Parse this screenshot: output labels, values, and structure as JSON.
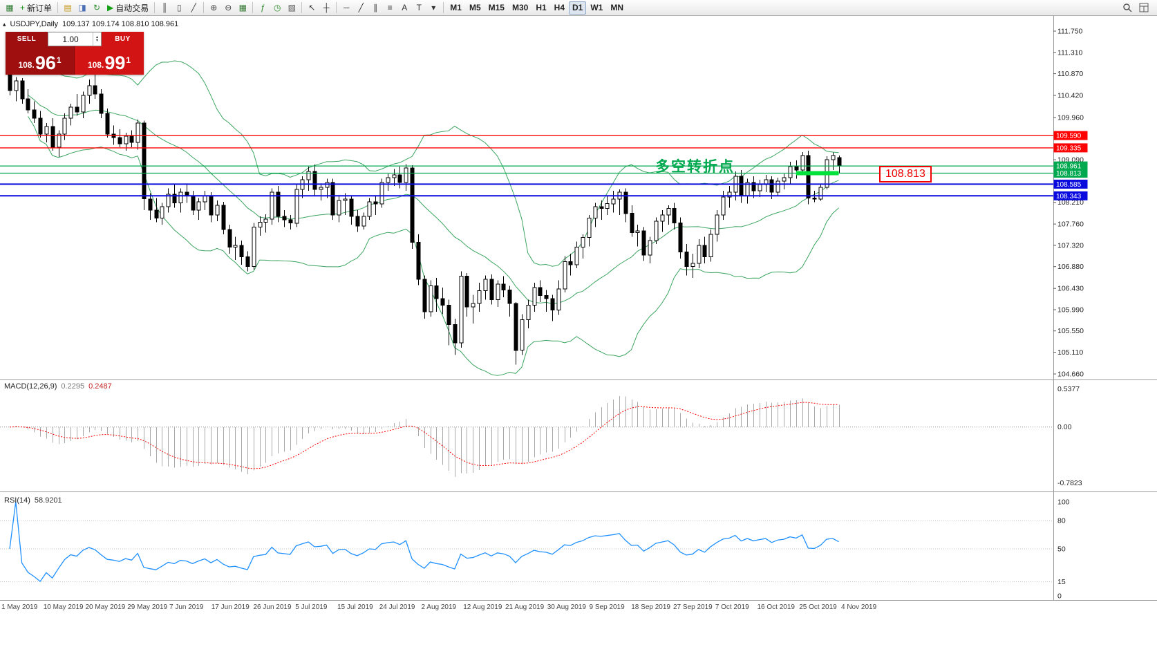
{
  "toolbar": {
    "groups": [
      {
        "items": [
          {
            "name": "app-icon",
            "glyph": "▦",
            "color": "#2f7d32"
          },
          {
            "name": "new-order-button",
            "glyph": "+",
            "color": "#1a8f1a",
            "label": "新订单"
          }
        ]
      },
      {
        "items": [
          {
            "name": "chart-window-icon",
            "glyph": "▤",
            "color": "#c79618"
          },
          {
            "name": "profiles-icon",
            "glyph": "◨",
            "color": "#4a6fb5"
          },
          {
            "name": "refresh-icon",
            "glyph": "↻",
            "color": "#2f8f2f"
          },
          {
            "name": "autotrade-button",
            "glyph": "▶",
            "color": "#16a016",
            "label": "自动交易"
          }
        ]
      },
      {
        "items": [
          {
            "name": "bars-chart-icon",
            "glyph": "║",
            "color": "#444444"
          },
          {
            "name": "candlestick-chart-icon",
            "glyph": "▯",
            "color": "#444444"
          },
          {
            "name": "line-chart-icon",
            "glyph": "╱",
            "color": "#444444"
          }
        ]
      },
      {
        "items": [
          {
            "name": "zoom-in-icon",
            "glyph": "⊕",
            "color": "#444444"
          },
          {
            "name": "zoom-out-icon",
            "glyph": "⊖",
            "color": "#444444"
          },
          {
            "name": "tile-windows-icon",
            "glyph": "▦",
            "color": "#3a7d3a"
          }
        ]
      },
      {
        "items": [
          {
            "name": "indicators-icon",
            "glyph": "ƒ",
            "color": "#2f8f2f"
          },
          {
            "name": "periods-icon",
            "glyph": "◷",
            "color": "#2f8f2f"
          },
          {
            "name": "templates-icon",
            "glyph": "▧",
            "color": "#555555"
          }
        ]
      },
      {
        "items": [
          {
            "name": "cursor-icon",
            "glyph": "↖",
            "color": "#333333"
          },
          {
            "name": "crosshair-icon",
            "glyph": "┼",
            "color": "#333333"
          }
        ]
      },
      {
        "items": [
          {
            "name": "hline-tool-icon",
            "glyph": "─",
            "color": "#333333"
          },
          {
            "name": "trendline-tool-icon",
            "glyph": "╱",
            "color": "#333333"
          },
          {
            "name": "channel-tool-icon",
            "glyph": "∥",
            "color": "#333333"
          },
          {
            "name": "fibonacci-tool-icon",
            "glyph": "≡",
            "color": "#333333"
          },
          {
            "name": "text-tool-button",
            "glyph": "A",
            "color": "#333333"
          },
          {
            "name": "label-tool-button",
            "glyph": "T",
            "color": "#333333"
          },
          {
            "name": "arrow-tools-icon",
            "glyph": "▾",
            "color": "#333333"
          }
        ]
      },
      {
        "items": [
          {
            "name": "timeframe-m1-button",
            "label": "M1",
            "tf": true
          },
          {
            "name": "timeframe-m5-button",
            "label": "M5",
            "tf": true
          },
          {
            "name": "timeframe-m15-button",
            "label": "M15",
            "tf": true
          },
          {
            "name": "timeframe-m30-button",
            "label": "M30",
            "tf": true
          },
          {
            "name": "timeframe-h1-button",
            "label": "H1",
            "tf": true
          },
          {
            "name": "timeframe-h4-button",
            "label": "H4",
            "tf": true
          },
          {
            "name": "timeframe-d1-button",
            "label": "D1",
            "tf": true,
            "active": true
          },
          {
            "name": "timeframe-w1-button",
            "label": "W1",
            "tf": true
          },
          {
            "name": "timeframe-mn-button",
            "label": "MN",
            "tf": true
          }
        ]
      }
    ]
  },
  "chart_header": {
    "menu_icon": "▴",
    "symbol": "USDJPY,Daily",
    "ohlc": "109.137 109.174 108.810 108.961"
  },
  "trade_panel": {
    "sell_label": "SELL",
    "buy_label": "BUY",
    "volume": "1.00",
    "spinner_up": "▴",
    "spinner_down": "▾",
    "sell_price": {
      "prefix": "108.",
      "big": "96",
      "sup": "1"
    },
    "buy_price": {
      "prefix": "108.",
      "big": "99",
      "sup": "1"
    }
  },
  "annotations": {
    "turning_point": {
      "text": "多空转折点",
      "color": "#00a94f"
    },
    "callout": {
      "text": "108.813",
      "color": "#f00000"
    }
  },
  "chart_data": {
    "type": "candlestick",
    "symbol": "USDJPY",
    "timeframe": "Daily",
    "ylim": [
      104.66,
      111.75
    ],
    "y_axis_ticks": [
      111.75,
      111.31,
      110.87,
      110.42,
      109.96,
      109.09,
      108.21,
      107.76,
      107.32,
      106.88,
      106.43,
      105.99,
      105.55,
      105.11,
      104.66
    ],
    "x_axis_labels": [
      "1 May 2019",
      "10 May 2019",
      "20 May 2019",
      "29 May 2019",
      "7 Jun 2019",
      "17 Jun 2019",
      "26 Jun 2019",
      "5 Jul 2019",
      "15 Jul 2019",
      "24 Jul 2019",
      "2 Aug 2019",
      "12 Aug 2019",
      "21 Aug 2019",
      "30 Aug 2019",
      "9 Sep 2019",
      "18 Sep 2019",
      "27 Sep 2019",
      "7 Oct 2019",
      "16 Oct 2019",
      "25 Oct 2019",
      "4 Nov 2019"
    ],
    "overlays": {
      "bollinger": {
        "period": 20,
        "deviation": 2,
        "color": "#3aa45f"
      }
    },
    "hlines": [
      {
        "price": 109.59,
        "color": "#ff0000",
        "width": 1.4,
        "label": "109.590"
      },
      {
        "price": 109.335,
        "color": "#ff0000",
        "width": 1.4,
        "label": "109.335"
      },
      {
        "price": 108.961,
        "color": "#00a94f",
        "width": 1.2,
        "label": "108.961"
      },
      {
        "price": 108.813,
        "color": "#00a94f",
        "width": 1.2,
        "label": "108.813"
      },
      {
        "price": 108.585,
        "color": "#0a0adf",
        "width": 2,
        "label": "108.585"
      },
      {
        "price": 108.343,
        "color": "#0a0adf",
        "width": 2,
        "label": "108.343"
      }
    ],
    "highlight_segment": {
      "price": 108.813,
      "from_index": 129,
      "to_index": 136,
      "color": "#00e13c",
      "thickness": 6
    },
    "candles": [
      [
        110.85,
        110.92,
        110.42,
        110.52
      ],
      [
        110.52,
        110.8,
        110.3,
        110.72
      ],
      [
        110.72,
        110.78,
        110.25,
        110.35
      ],
      [
        110.35,
        110.55,
        110.05,
        110.12
      ],
      [
        110.12,
        110.3,
        109.85,
        109.95
      ],
      [
        109.95,
        110.1,
        109.55,
        109.62
      ],
      [
        109.62,
        109.85,
        109.45,
        109.78
      ],
      [
        109.78,
        109.95,
        109.28,
        109.35
      ],
      [
        109.35,
        109.7,
        109.15,
        109.62
      ],
      [
        109.62,
        110.05,
        109.5,
        109.95
      ],
      [
        109.95,
        110.25,
        109.8,
        110.18
      ],
      [
        110.18,
        110.45,
        110.0,
        110.08
      ],
      [
        110.08,
        110.5,
        109.95,
        110.42
      ],
      [
        110.42,
        110.75,
        110.25,
        110.62
      ],
      [
        110.62,
        110.85,
        110.35,
        110.45
      ],
      [
        110.45,
        110.55,
        109.95,
        110.05
      ],
      [
        110.05,
        110.15,
        109.55,
        109.62
      ],
      [
        109.62,
        109.8,
        109.4,
        109.55
      ],
      [
        109.55,
        109.72,
        109.35,
        109.42
      ],
      [
        109.42,
        109.65,
        109.28,
        109.58
      ],
      [
        109.58,
        109.7,
        109.35,
        109.45
      ],
      [
        109.45,
        109.92,
        109.3,
        109.85
      ],
      [
        109.85,
        109.9,
        108.05,
        108.28
      ],
      [
        108.28,
        108.4,
        107.85,
        108.05
      ],
      [
        108.05,
        108.3,
        107.8,
        107.88
      ],
      [
        107.88,
        108.2,
        107.75,
        108.12
      ],
      [
        108.12,
        108.5,
        108.0,
        108.38
      ],
      [
        108.38,
        108.6,
        108.1,
        108.2
      ],
      [
        108.2,
        108.5,
        108.0,
        108.42
      ],
      [
        108.42,
        108.6,
        108.2,
        108.35
      ],
      [
        108.35,
        108.45,
        107.95,
        108.05
      ],
      [
        108.05,
        108.3,
        107.85,
        108.22
      ],
      [
        108.22,
        108.45,
        108.05,
        108.35
      ],
      [
        108.35,
        108.42,
        107.8,
        107.95
      ],
      [
        107.95,
        108.25,
        107.82,
        108.15
      ],
      [
        108.15,
        108.22,
        107.55,
        107.65
      ],
      [
        107.65,
        107.75,
        107.15,
        107.28
      ],
      [
        107.28,
        107.5,
        107.02,
        107.32
      ],
      [
        107.32,
        107.42,
        106.92,
        107.08
      ],
      [
        107.08,
        107.2,
        106.78,
        106.88
      ],
      [
        106.88,
        107.78,
        106.82,
        107.7
      ],
      [
        107.7,
        107.92,
        107.52,
        107.8
      ],
      [
        107.8,
        107.96,
        107.58,
        107.86
      ],
      [
        107.86,
        108.5,
        107.75,
        108.42
      ],
      [
        108.42,
        108.55,
        107.8,
        107.92
      ],
      [
        107.92,
        108.05,
        107.7,
        107.85
      ],
      [
        107.85,
        107.95,
        107.65,
        107.78
      ],
      [
        107.78,
        108.6,
        107.7,
        108.48
      ],
      [
        108.48,
        108.75,
        108.3,
        108.68
      ],
      [
        108.68,
        108.95,
        108.45,
        108.85
      ],
      [
        108.85,
        108.99,
        108.35,
        108.48
      ],
      [
        108.48,
        108.6,
        108.25,
        108.52
      ],
      [
        108.52,
        108.7,
        108.3,
        108.62
      ],
      [
        108.62,
        108.7,
        107.85,
        107.95
      ],
      [
        107.95,
        108.35,
        107.8,
        108.25
      ],
      [
        108.25,
        108.4,
        107.95,
        108.28
      ],
      [
        108.28,
        108.35,
        107.75,
        107.92
      ],
      [
        107.92,
        108.05,
        107.6,
        107.72
      ],
      [
        107.72,
        108.0,
        107.65,
        107.92
      ],
      [
        107.92,
        108.3,
        107.85,
        108.22
      ],
      [
        108.22,
        108.35,
        107.95,
        108.18
      ],
      [
        108.18,
        108.7,
        108.1,
        108.62
      ],
      [
        108.62,
        108.8,
        108.45,
        108.72
      ],
      [
        108.72,
        108.9,
        108.55,
        108.78
      ],
      [
        108.78,
        108.95,
        108.5,
        108.62
      ],
      [
        108.62,
        109.0,
        108.45,
        108.92
      ],
      [
        108.92,
        108.98,
        107.25,
        107.38
      ],
      [
        107.38,
        107.55,
        106.5,
        106.62
      ],
      [
        106.62,
        106.7,
        105.8,
        105.95
      ],
      [
        105.95,
        106.6,
        105.85,
        106.48
      ],
      [
        106.48,
        106.65,
        105.95,
        106.22
      ],
      [
        106.22,
        106.45,
        105.9,
        106.08
      ],
      [
        106.08,
        106.2,
        105.25,
        105.68
      ],
      [
        105.68,
        105.8,
        105.05,
        105.3
      ],
      [
        105.3,
        106.78,
        105.2,
        106.68
      ],
      [
        106.68,
        106.75,
        105.85,
        106.05
      ],
      [
        106.05,
        106.3,
        105.7,
        106.12
      ],
      [
        106.12,
        106.55,
        105.95,
        106.38
      ],
      [
        106.38,
        106.7,
        106.2,
        106.62
      ],
      [
        106.62,
        106.72,
        106.1,
        106.2
      ],
      [
        106.2,
        106.6,
        106.05,
        106.52
      ],
      [
        106.52,
        106.68,
        106.25,
        106.4
      ],
      [
        106.4,
        106.48,
        105.85,
        106.12
      ],
      [
        106.12,
        106.15,
        104.85,
        105.15
      ],
      [
        105.15,
        105.9,
        105.05,
        105.78
      ],
      [
        105.78,
        106.2,
        105.6,
        106.08
      ],
      [
        106.08,
        106.55,
        105.95,
        106.45
      ],
      [
        106.45,
        106.6,
        106.15,
        106.28
      ],
      [
        106.28,
        106.4,
        105.95,
        106.22
      ],
      [
        106.22,
        106.3,
        105.75,
        105.98
      ],
      [
        105.98,
        106.6,
        105.88,
        106.42
      ],
      [
        106.42,
        107.1,
        106.35,
        106.98
      ],
      [
        106.98,
        107.15,
        106.7,
        106.92
      ],
      [
        106.92,
        107.4,
        106.85,
        107.28
      ],
      [
        107.28,
        107.55,
        107.05,
        107.48
      ],
      [
        107.48,
        107.95,
        107.3,
        107.88
      ],
      [
        107.88,
        108.2,
        107.7,
        108.12
      ],
      [
        108.12,
        108.25,
        107.85,
        108.08
      ],
      [
        108.08,
        108.35,
        107.95,
        108.18
      ],
      [
        108.18,
        108.45,
        108.0,
        108.28
      ],
      [
        108.28,
        108.48,
        107.95,
        108.42
      ],
      [
        108.42,
        108.5,
        107.8,
        107.98
      ],
      [
        107.98,
        108.15,
        107.5,
        107.58
      ],
      [
        107.58,
        107.75,
        107.3,
        107.62
      ],
      [
        107.62,
        107.7,
        107.0,
        107.12
      ],
      [
        107.12,
        107.5,
        106.95,
        107.42
      ],
      [
        107.42,
        107.9,
        107.35,
        107.82
      ],
      [
        107.82,
        108.05,
        107.6,
        107.95
      ],
      [
        107.95,
        108.15,
        107.75,
        108.08
      ],
      [
        108.08,
        108.2,
        107.65,
        107.78
      ],
      [
        107.78,
        107.9,
        107.05,
        107.18
      ],
      [
        107.18,
        107.35,
        106.7,
        106.88
      ],
      [
        106.88,
        107.15,
        106.65,
        106.95
      ],
      [
        106.95,
        107.45,
        106.85,
        107.32
      ],
      [
        107.32,
        107.5,
        106.95,
        107.08
      ],
      [
        107.08,
        107.65,
        106.98,
        107.55
      ],
      [
        107.55,
        108.05,
        107.4,
        107.95
      ],
      [
        107.95,
        108.45,
        107.85,
        108.32
      ],
      [
        108.32,
        108.55,
        108.1,
        108.42
      ],
      [
        108.42,
        108.85,
        108.25,
        108.75
      ],
      [
        108.75,
        108.88,
        108.2,
        108.35
      ],
      [
        108.35,
        108.7,
        108.18,
        108.62
      ],
      [
        108.62,
        108.75,
        108.3,
        108.45
      ],
      [
        108.45,
        108.68,
        108.32,
        108.58
      ],
      [
        108.58,
        108.78,
        108.42,
        108.68
      ],
      [
        108.68,
        108.75,
        108.28,
        108.42
      ],
      [
        108.42,
        108.72,
        108.35,
        108.65
      ],
      [
        108.65,
        108.8,
        108.48,
        108.72
      ],
      [
        108.72,
        109.05,
        108.6,
        108.95
      ],
      [
        108.95,
        109.08,
        108.7,
        108.88
      ],
      [
        108.88,
        109.25,
        108.8,
        109.18
      ],
      [
        109.18,
        109.28,
        108.17,
        108.3
      ],
      [
        108.3,
        108.45,
        108.21,
        108.28
      ],
      [
        108.28,
        108.6,
        108.24,
        108.52
      ],
      [
        108.52,
        109.16,
        108.48,
        109.09
      ],
      [
        109.09,
        109.24,
        108.88,
        109.18
      ],
      [
        109.137,
        109.174,
        108.81,
        108.961
      ]
    ],
    "indicators": {
      "macd": {
        "label": "MACD(12,26,9)",
        "value_main": "0.2295",
        "value_signal": "0.2487",
        "fast": 12,
        "slow": 26,
        "signal": 9,
        "ylim": [
          -0.7823,
          0.5377
        ],
        "axis_labels": [
          "0.5377",
          "0.00",
          "-0.7823"
        ],
        "histogram_color": "#a8a8a8",
        "signal_color": "#ff0000"
      },
      "rsi": {
        "label": "RSI(14)",
        "value": "58.9201",
        "period": 14,
        "axis": [
          100,
          80,
          50,
          15,
          0
        ],
        "level_lines": [
          80,
          50,
          15
        ],
        "line_color": "#1E90FF"
      }
    }
  }
}
